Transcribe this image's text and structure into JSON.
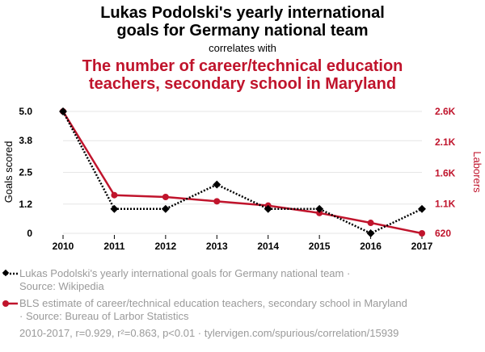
{
  "titles": {
    "title1_line1": "Lukas Podolski's yearly international",
    "title1_line2": "goals for Germany national team",
    "connector": "correlates with",
    "title2_line1": "The number of career/technical education",
    "title2_line2": "teachers, secondary school in Maryland"
  },
  "legend": {
    "series1_line1": "Lukas Podolski's yearly international goals for Germany national team ·",
    "series1_line2": "Source: Wikipedia",
    "series2_line1": "BLS estimate of career/technical education teachers, secondary school in Maryland",
    "series2_line2": "· Source: Bureau of Larbor Statistics"
  },
  "footer": "2010-2017, r=0.929, r²=0.863, p<0.01 · tylervigen.com/spurious/correlation/15939",
  "colors": {
    "series1": "#000000",
    "series2": "#c0142c",
    "muted": "#9a9a9a",
    "grid": "#e6e6e6"
  },
  "chart_data": {
    "type": "line",
    "x": [
      2010,
      2011,
      2012,
      2013,
      2014,
      2015,
      2016,
      2017
    ],
    "x_ticks": [
      "2010",
      "2011",
      "2012",
      "2013",
      "2014",
      "2015",
      "2016",
      "2017"
    ],
    "y_left": {
      "label": "Goals scored",
      "ticks": [
        0,
        1.2,
        2.5,
        3.8,
        5.0
      ],
      "tick_labels": [
        "0",
        "1.2",
        "2.5",
        "3.8",
        "5.0"
      ],
      "range": [
        0,
        5
      ]
    },
    "y_right": {
      "label": "Laborers",
      "ticks": [
        620,
        1100,
        1600,
        2100,
        2600
      ],
      "tick_labels": [
        "620",
        "1.1K",
        "1.6K",
        "2.1K",
        "2.6K"
      ],
      "range": [
        620,
        2600
      ]
    },
    "series": [
      {
        "name": "Lukas Podolski's yearly international goals for Germany national team",
        "axis": "left",
        "style": "dotted",
        "marker": "diamond",
        "values": [
          5,
          1,
          1,
          2,
          1,
          1,
          0,
          1
        ]
      },
      {
        "name": "BLS estimate of career/technical education teachers, secondary school in Maryland",
        "axis": "right",
        "style": "solid",
        "marker": "circle",
        "values": [
          2600,
          1240,
          1210,
          1140,
          1070,
          950,
          790,
          620
        ]
      }
    ]
  }
}
